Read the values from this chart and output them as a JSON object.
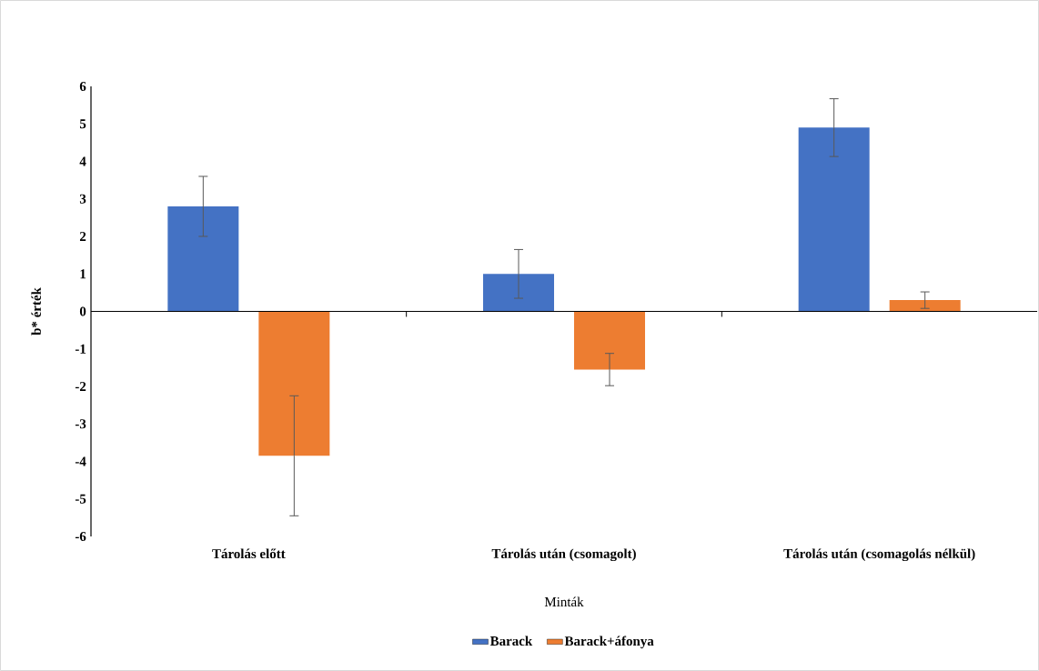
{
  "chart_data": {
    "type": "bar",
    "xlabel": "Minták",
    "ylabel": "b* érték",
    "categories": [
      "Tárolás előtt",
      "Tárolás után (csomagolt)",
      "Tárolás után (csomagolás nélkül)"
    ],
    "series": [
      {
        "name": "Barack",
        "color": "#4472c4",
        "values": [
          2.8,
          1.0,
          4.9
        ],
        "errors": [
          0.8,
          0.65,
          0.77
        ]
      },
      {
        "name": "Barack+áfonya",
        "color": "#ed7d31",
        "values": [
          -3.85,
          -1.55,
          0.3
        ],
        "errors": [
          1.6,
          0.43,
          0.22
        ]
      }
    ],
    "ylim": [
      -6,
      6
    ],
    "yticks": [
      -6,
      -5,
      -4,
      -3,
      -2,
      -1,
      0,
      1,
      2,
      3,
      4,
      5,
      6
    ],
    "legend": "bottom"
  }
}
